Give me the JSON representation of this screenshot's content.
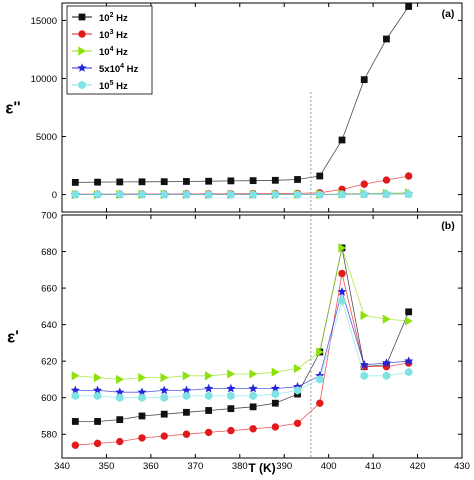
{
  "chart_data": {
    "type": "line",
    "x_axis": {
      "label": "T (K)",
      "range": [
        340,
        430
      ],
      "ticks": [
        340,
        350,
        360,
        370,
        380,
        390,
        400,
        410,
        420,
        430
      ],
      "tick_labels": [
        "340",
        "350",
        "360",
        "370",
        "380",
        "390",
        "400",
        "410",
        "420",
        "430"
      ]
    },
    "reference_line_x": 396,
    "series_styles": [
      {
        "name_base": "10",
        "name_sup": "2",
        "name_suffix": " Hz",
        "color": "#111111",
        "marker": "square"
      },
      {
        "name_base": "10",
        "name_sup": "3",
        "name_suffix": " Hz",
        "color": "#e11b1b",
        "marker": "circle"
      },
      {
        "name_base": "10",
        "name_sup": "4",
        "name_suffix": " Hz",
        "color": "#8ee10b",
        "marker": "triangle-right"
      },
      {
        "name_base": "5x10",
        "name_sup": "4",
        "name_suffix": " Hz",
        "color": "#2424d8",
        "marker": "star"
      },
      {
        "name_base": "10",
        "name_sup": "5",
        "name_suffix": " Hz",
        "color": "#7fe3e3",
        "marker": "hexagon"
      }
    ],
    "panels": [
      {
        "id": "a",
        "panel_label": "(a)",
        "ylabel_main": "ε",
        "ylabel_primes": "''",
        "ylim": [
          -1500,
          16500
        ],
        "yticks": [
          0,
          5000,
          10000,
          15000
        ],
        "ytick_labels": [
          "0",
          "5000",
          "10000",
          "15000"
        ],
        "legend": "top-left",
        "x": [
          343,
          348,
          353,
          358,
          363,
          368,
          373,
          378,
          383,
          388,
          393,
          398,
          403,
          408,
          413,
          418
        ],
        "series": [
          {
            "name": "10² Hz",
            "values": [
              1050,
              1070,
              1090,
              1100,
              1110,
              1130,
              1150,
              1180,
              1200,
              1230,
              1300,
              1600,
              4700,
              9900,
              13400,
              16200
            ]
          },
          {
            "name": "10³ Hz",
            "values": [
              30,
              40,
              40,
              50,
              50,
              60,
              60,
              70,
              80,
              80,
              100,
              150,
              450,
              900,
              1250,
              1600
            ]
          },
          {
            "name": "10⁴ Hz",
            "values": [
              5,
              5,
              5,
              5,
              10,
              10,
              10,
              10,
              10,
              10,
              15,
              20,
              60,
              100,
              120,
              150
            ]
          },
          {
            "name": "5x10⁴ Hz",
            "values": [
              3,
              3,
              3,
              3,
              3,
              4,
              4,
              4,
              4,
              4,
              5,
              8,
              25,
              40,
              50,
              60
            ]
          },
          {
            "name": "10⁵ Hz",
            "values": [
              2,
              2,
              2,
              2,
              2,
              2,
              2,
              3,
              3,
              3,
              3,
              5,
              15,
              25,
              30,
              40
            ]
          }
        ]
      },
      {
        "id": "b",
        "panel_label": "(b)",
        "ylabel_main": "ε",
        "ylabel_primes": "'",
        "ylim": [
          567,
          700
        ],
        "yticks": [
          580,
          600,
          620,
          640,
          660,
          680,
          700
        ],
        "ytick_labels": [
          "580",
          "600",
          "620",
          "640",
          "660",
          "680",
          "700"
        ],
        "x": [
          343,
          348,
          353,
          358,
          363,
          368,
          373,
          378,
          383,
          388,
          393,
          398,
          403,
          408,
          413,
          418
        ],
        "series": [
          {
            "name": "10² Hz",
            "values": [
              587,
              587,
              588,
              590,
              591,
              592,
              593,
              594,
              595,
              597,
              602,
              625,
              682,
              617,
              618,
              647
            ]
          },
          {
            "name": "10³ Hz",
            "values": [
              574,
              575,
              576,
              578,
              579,
              580,
              581,
              582,
              583,
              584,
              586,
              597,
              668,
              617,
              617,
              619
            ]
          },
          {
            "name": "10⁴ Hz",
            "values": [
              612,
              611,
              610,
              611,
              611,
              612,
              612,
              613,
              613,
              614,
              616,
              625,
              682,
              645,
              643,
              642
            ]
          },
          {
            "name": "5x10⁴ Hz",
            "values": [
              604,
              604,
              603,
              603,
              604,
              604,
              605,
              605,
              605,
              605,
              606,
              612,
              658,
              618,
              619,
              620
            ]
          },
          {
            "name": "10⁵ Hz",
            "values": [
              601,
              601,
              600,
              600,
              600,
              601,
              601,
              601,
              601,
              602,
              604,
              610,
              653,
              612,
              612,
              614
            ]
          }
        ]
      }
    ]
  }
}
